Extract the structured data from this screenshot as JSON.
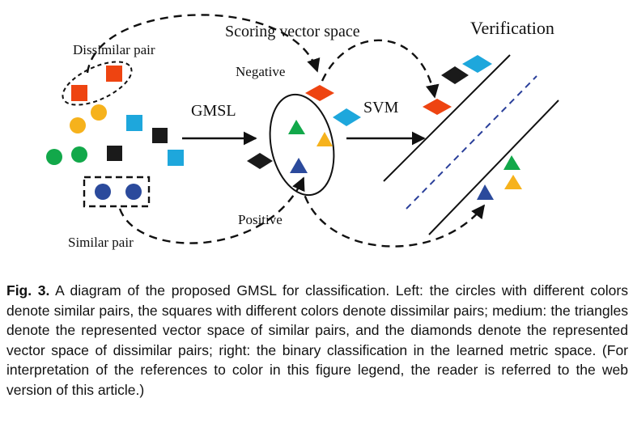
{
  "labels": {
    "dissimilar_pair": "Dissimilar pair",
    "similar_pair": "Similar pair",
    "scoring_vector_space": "Scoring vector space",
    "verification": "Verification",
    "negative": "Negative",
    "positive": "Positive",
    "gmsl": "GMSL",
    "svm": "SVM"
  },
  "colors": {
    "red": "#ee4411",
    "yellow": "#f6b21c",
    "green": "#12a84a",
    "cyan": "#1ea7dc",
    "black": "#1a1a1a",
    "navy": "#2b4a9c",
    "dashed_blue": "#2a3f9a"
  },
  "caption": {
    "label": "Fig. 3.",
    "text": " A diagram of the proposed GMSL for classification. Left: the circles with different colors denote similar pairs, the squares with different colors denote dissimilar pairs; medium: the triangles denote the represented vector space of similar pairs, and the diamonds denote the represented vector space of dissimilar pairs; right: the binary classification in the learned metric space. (For interpretation of the references to color in this figure legend, the reader is referred to the web version of this article.)"
  }
}
